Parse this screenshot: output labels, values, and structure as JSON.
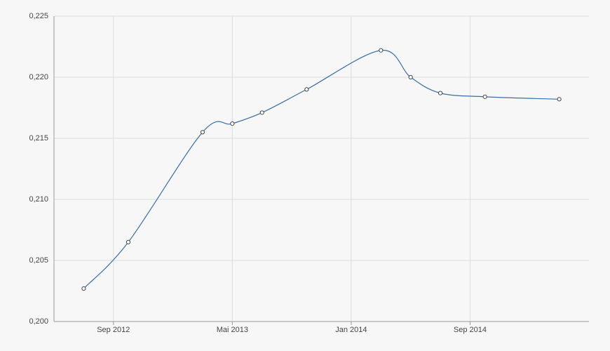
{
  "chart_data": {
    "type": "line",
    "x": [
      "2012-07",
      "2012-10",
      "2013-03",
      "2013-05",
      "2013-07",
      "2013-10",
      "2014-03",
      "2014-05",
      "2014-07",
      "2014-10",
      "2015-03"
    ],
    "series": [
      {
        "color": "#3a6ea5",
        "values": [
          0.2027,
          0.2065,
          0.2155,
          0.2162,
          0.2171,
          0.219,
          0.2222,
          0.22,
          0.2187,
          0.2184,
          0.2182
        ]
      }
    ],
    "xlim": [
      "2012-05",
      "2015-05"
    ],
    "xticks": [
      {
        "value": "2012-09",
        "label": "Sep 2012"
      },
      {
        "value": "2013-05",
        "label": "Mai 2013"
      },
      {
        "value": "2014-01",
        "label": "Jan 2014"
      },
      {
        "value": "2014-09",
        "label": "Sep 2014"
      }
    ],
    "ylim": [
      0.2,
      0.225
    ],
    "yticks": [
      {
        "value": 0.2,
        "label": "0,200"
      },
      {
        "value": 0.205,
        "label": "0,205"
      },
      {
        "value": 0.21,
        "label": "0,210"
      },
      {
        "value": 0.215,
        "label": "0,215"
      },
      {
        "value": 0.22,
        "label": "0,220"
      },
      {
        "value": 0.225,
        "label": "0,225"
      }
    ],
    "grid": true
  }
}
